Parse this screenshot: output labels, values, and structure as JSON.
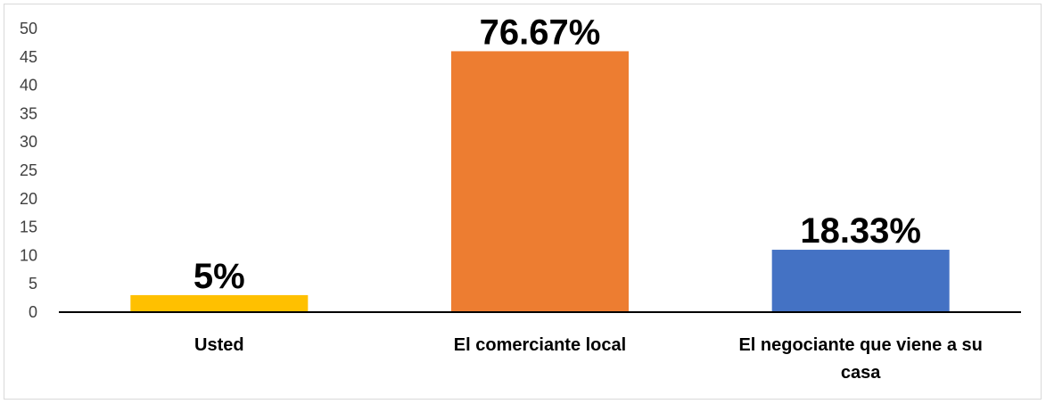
{
  "chart_data": {
    "type": "bar",
    "title": "",
    "xlabel": "",
    "ylabel": "",
    "ylim": [
      0,
      50
    ],
    "y_ticks": [
      0,
      5,
      10,
      15,
      20,
      25,
      30,
      35,
      40,
      45,
      50
    ],
    "grid": false,
    "legend": "none",
    "categories": [
      [
        "Usted"
      ],
      [
        "El comerciante local"
      ],
      [
        "El negociante que viene a su",
        "casa"
      ]
    ],
    "values": [
      3,
      46,
      11
    ],
    "data_labels": [
      "5%",
      "76.67%",
      "18.33%"
    ],
    "colors": [
      "#FFC000",
      "#ED7D31",
      "#4472C4"
    ]
  }
}
